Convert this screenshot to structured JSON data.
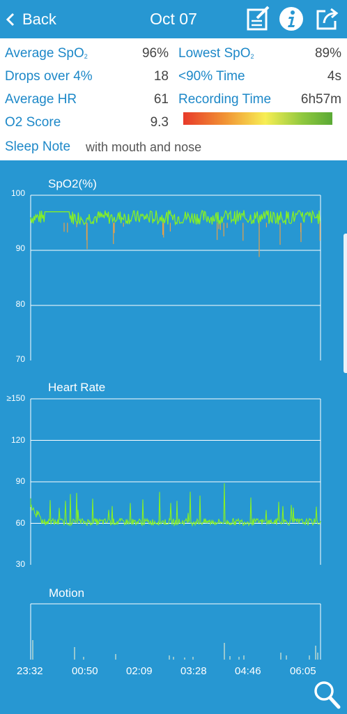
{
  "header": {
    "back_label": "Back",
    "title": "Oct 07",
    "icons": [
      "edit-icon",
      "info-icon",
      "share-icon"
    ]
  },
  "stats": {
    "avg_spo2_label": "Average SpO",
    "avg_spo2_sub": "2",
    "avg_spo2_value": "96%",
    "lowest_spo2_label": "Lowest SpO",
    "lowest_spo2_sub": "2",
    "lowest_spo2_value": "89%",
    "drops_label": "Drops over 4%",
    "drops_value": "18",
    "below90_label": "<90% Time",
    "below90_value": "4s",
    "avg_hr_label": "Average HR",
    "avg_hr_value": "61",
    "recording_label": "Recording Time",
    "recording_value": "6h57m",
    "o2score_label": "O2 Score",
    "o2score_value": "9.3",
    "sleep_note_label": "Sleep Note",
    "sleep_note_value": "with mouth and nose"
  },
  "colors": {
    "accent": "#2797d2",
    "label_blue": "#1d88c8",
    "trace_green": "#86f025",
    "trace_orange": "#e8a046"
  },
  "chart_data": [
    {
      "type": "line",
      "title": "SpO2(%)",
      "y_ticks": [
        "100",
        "90",
        "80",
        "70"
      ],
      "ylim": [
        70,
        100
      ],
      "x": [
        "23:32",
        "00:50",
        "02:09",
        "03:28",
        "04:46",
        "06:05"
      ],
      "baseline": 96,
      "dips": [
        89,
        90,
        91,
        92
      ]
    },
    {
      "type": "line",
      "title": "Heart Rate",
      "y_ticks": [
        "≥150",
        "120",
        "90",
        "60",
        "30"
      ],
      "ylim": [
        30,
        150
      ],
      "x": [
        "23:32",
        "00:50",
        "02:09",
        "03:28",
        "04:46",
        "06:05"
      ],
      "baseline": 61,
      "peak": 89
    },
    {
      "type": "bar",
      "title": "Motion",
      "x": [
        "23:32",
        "00:50",
        "02:09",
        "03:28",
        "04:46",
        "06:05"
      ]
    }
  ]
}
